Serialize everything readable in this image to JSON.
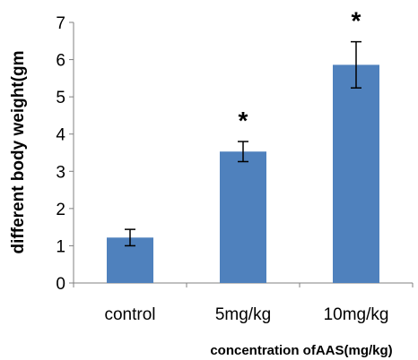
{
  "chart_data": {
    "type": "bar",
    "categories": [
      "control",
      "5mg/kg",
      "10mg/kg"
    ],
    "values": [
      1.22,
      3.53,
      5.86
    ],
    "error": [
      0.22,
      0.27,
      0.62
    ],
    "significance": [
      "",
      "*",
      "*"
    ],
    "ylabel": "different body weight(gm",
    "xlabel": "concentration ofAAS(mg/kg)",
    "ylim": [
      0,
      7
    ],
    "yticks": [
      0,
      1,
      2,
      3,
      4,
      5,
      6,
      7
    ],
    "grid": false,
    "bar_color": "#4f81bd"
  }
}
